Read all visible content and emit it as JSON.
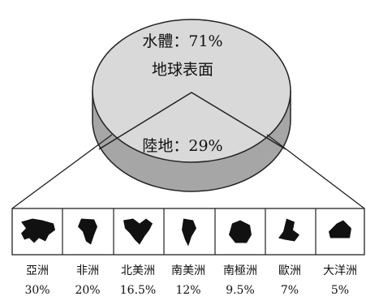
{
  "chart_data": {
    "type": "pie",
    "slices": [
      {
        "label": "水體",
        "value": 71,
        "display": "水體：71%"
      },
      {
        "label": "陸地",
        "value": 29,
        "display": "陸地：29%"
      }
    ],
    "center_label": "地球表面",
    "breakdown": {
      "categories": [
        "亞洲",
        "非洲",
        "北美洲",
        "南美洲",
        "南極洲",
        "歐洲",
        "大洋洲"
      ],
      "values": [
        30,
        20,
        16.5,
        12,
        9.5,
        7,
        5
      ],
      "value_labels": [
        "30%",
        "20%",
        "16.5%",
        "12%",
        "9.5%",
        "7%",
        "5%"
      ]
    },
    "colors": {
      "pie_top": "#d9d9d9",
      "pie_side": "#a6a6a6",
      "outline": "#222222",
      "silhouette": "#111111"
    }
  }
}
